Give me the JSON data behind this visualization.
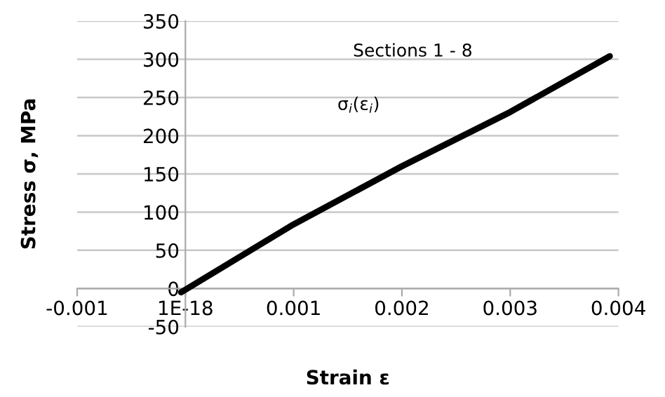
{
  "chart_data": {
    "type": "line",
    "xlabel": "Strain ε",
    "ylabel": "Stress σ, MPa",
    "annotations": [
      "Sections 1 - 8"
    ],
    "series": [
      {
        "name": "σ$_{i}$(ε$_{i}$)",
        "color": "#000000",
        "x": [
          -4e-05,
          0.001,
          0.002,
          0.003,
          0.00392
        ],
        "values": [
          -5,
          84,
          160,
          231,
          304
        ]
      }
    ],
    "xlim": [
      -0.001,
      0.004
    ],
    "xticks": [
      -0.001,
      {
        "value": 0,
        "label": "1E-18"
      },
      0.001,
      0.002,
      0.003,
      0.004
    ],
    "ylim": [
      -50,
      350
    ],
    "yticks": [
      -50,
      0,
      50,
      100,
      150,
      200,
      250,
      300,
      350
    ],
    "grid": "y",
    "marker": "none",
    "line_style": "solid"
  }
}
